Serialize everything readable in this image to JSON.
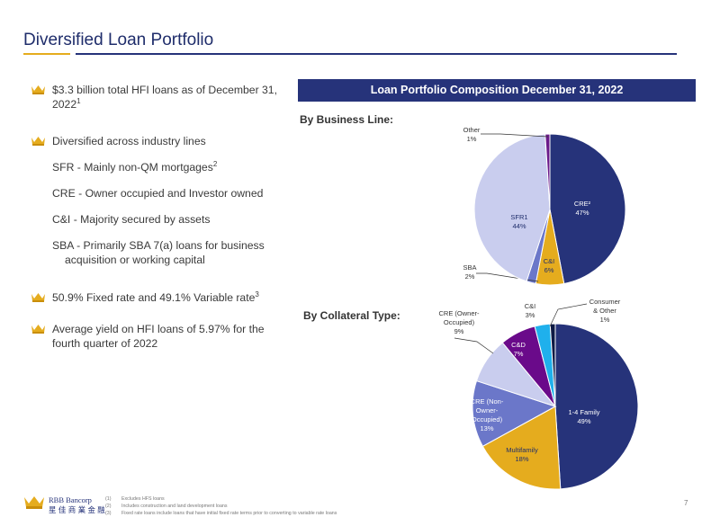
{
  "title": "Diversified Loan Portfolio",
  "bullets": {
    "b1_text": "$3.3 billion total HFI loans as of December 31, 2022",
    "b1_sup": "1",
    "b2": "Diversified across industry lines",
    "b2_sub1": "SFR - Mainly non-QM mortgages",
    "b2_sub1_sup": "2",
    "b2_sub2": "CRE - Owner occupied and Investor owned",
    "b2_sub3": "C&I - Majority secured by assets",
    "b2_sub4_l1": "SBA - Primarily SBA 7(a) loans for business",
    "b2_sub4_l2": "acquisition or working capital",
    "b3_text": "50.9% Fixed rate and 49.1% Variable rate",
    "b3_sup": "3",
    "b4_l1": "Average yield on HFI loans of 5.97% for the",
    "b4_l2": "fourth quarter of 2022"
  },
  "banner": "Loan Portfolio Composition December 31, 2022",
  "section_business": "By Business Line:",
  "section_collateral": "By Collateral Type:",
  "chart_data": [
    {
      "type": "pie",
      "title": "By Business Line:",
      "slices": [
        {
          "label": "CRE²",
          "value": 47,
          "pct_label": "47%",
          "color": "#26337a",
          "label_color": "#ffffff"
        },
        {
          "label": "C&I",
          "value": 6,
          "pct_label": "6%",
          "color": "#e5ac1e",
          "label_color": "#1f2d6b"
        },
        {
          "label": "SBA",
          "value": 2,
          "pct_label": "2%",
          "color": "#6b77c9",
          "label_color": "#333333"
        },
        {
          "label": "SFR1",
          "value": 44,
          "pct_label": "44%",
          "color": "#c9cdee",
          "label_color": "#1f2d6b"
        },
        {
          "label": "Other",
          "value": 1,
          "pct_label": "1%",
          "color": "#6a1a8a",
          "label_color": "#333333"
        }
      ]
    },
    {
      "type": "pie",
      "title": "By Collateral Type:",
      "slices": [
        {
          "label": "1-4 Family",
          "value": 49,
          "pct_label": "49%",
          "color": "#26337a",
          "label_color": "#ffffff"
        },
        {
          "label": "Multifamily",
          "value": 18,
          "pct_label": "18%",
          "color": "#e5ac1e",
          "label_color": "#1f2d6b"
        },
        {
          "label": "CRE (Non-Owner-Occupied)",
          "value": 13,
          "pct_label": "13%",
          "color": "#6b77c9",
          "label_color": "#ffffff"
        },
        {
          "label": "CRE (Owner-Occupied)",
          "value": 9,
          "pct_label": "9%",
          "color": "#c9cdee",
          "label_color": "#333333"
        },
        {
          "label": "C&D",
          "value": 7,
          "pct_label": "7%",
          "color": "#6a0a8a",
          "label_color": "#ffffff"
        },
        {
          "label": "C&I",
          "value": 3,
          "pct_label": "3%",
          "color": "#1fb0ec",
          "label_color": "#333333"
        },
        {
          "label": "Consumer & Other",
          "value": 1,
          "pct_label": "1%",
          "color": "#0d1a45",
          "label_color": "#333333"
        }
      ]
    }
  ],
  "footer": {
    "logo_en": "RBB Bancorp",
    "logo_zh": "星 佳 商 業 金 融",
    "footnotes": [
      {
        "num": "(1)",
        "text": "Excludes HFS loans"
      },
      {
        "num": "(2)",
        "text": "Includes construction and land development loans"
      },
      {
        "num": "(3)",
        "text": "Fixed rate loans include loans that have initial fixed rate terms prior to converting to variable rate loans"
      }
    ],
    "page": "7"
  },
  "colors": {
    "navy": "#26337a",
    "gold": "#e5ac1e"
  },
  "icons": [
    "crown-icon"
  ]
}
